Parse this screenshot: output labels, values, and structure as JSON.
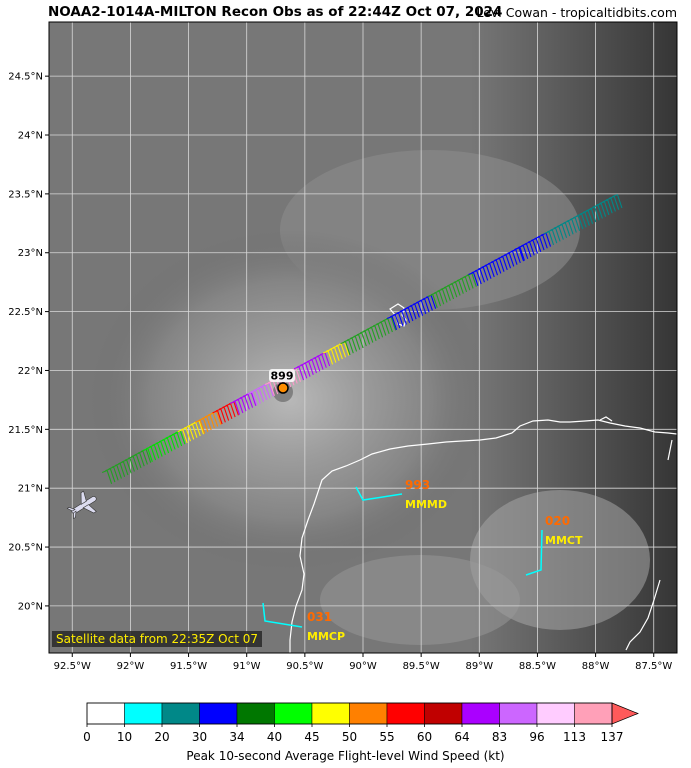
{
  "header": {
    "title": "NOAA2-1014A-MILTON Recon Obs as of 22:44Z Oct 07, 2024",
    "credit": "Levi Cowan - tropicaltidbits.com"
  },
  "map": {
    "lon_range": [
      -92.7,
      -87.3
    ],
    "lat_range": [
      19.6,
      24.96
    ],
    "lon_ticks": [
      {
        "value": -92.5,
        "label": "92.5°W"
      },
      {
        "value": -92,
        "label": "92°W"
      },
      {
        "value": -91.5,
        "label": "91.5°W"
      },
      {
        "value": -91,
        "label": "91°W"
      },
      {
        "value": -90.5,
        "label": "90.5°W"
      },
      {
        "value": -90,
        "label": "90°W"
      },
      {
        "value": -89.5,
        "label": "89.5°W"
      },
      {
        "value": -89,
        "label": "89°W"
      },
      {
        "value": -88.5,
        "label": "88.5°W"
      },
      {
        "value": -88,
        "label": "88°W"
      },
      {
        "value": -87.5,
        "label": "87.5°W"
      }
    ],
    "lat_ticks": [
      {
        "value": 20,
        "label": "20°N"
      },
      {
        "value": 20.5,
        "label": "20.5°N"
      },
      {
        "value": 21,
        "label": "21°N"
      },
      {
        "value": 21.5,
        "label": "21.5°N"
      },
      {
        "value": 22,
        "label": "22°N"
      },
      {
        "value": 22.5,
        "label": "22.5°N"
      },
      {
        "value": 23,
        "label": "23°N"
      },
      {
        "value": 23.5,
        "label": "23.5°N"
      },
      {
        "value": 24,
        "label": "24°N"
      },
      {
        "value": 24.5,
        "label": "24.5°N"
      }
    ],
    "grid": true,
    "satellite_label": "Satellite data from 22:35Z Oct 07",
    "center_fix": {
      "lon": -90.66,
      "lat": 21.86,
      "pressure_label": "899"
    },
    "flight_track": {
      "start": {
        "lon": -92.2,
        "lat": 21.15
      },
      "end": {
        "lon": -87.8,
        "lat": 23.5
      },
      "segments": [
        {
          "from": -92.2,
          "to": -91.85,
          "color": "#22a022"
        },
        {
          "from": -91.85,
          "to": -91.55,
          "color": "#00e000"
        },
        {
          "from": -91.55,
          "to": -91.4,
          "color": "#ffee00"
        },
        {
          "from": -91.4,
          "to": -91.25,
          "color": "#ff8c00"
        },
        {
          "from": -91.25,
          "to": -91.1,
          "color": "#ff0000"
        },
        {
          "from": -91.1,
          "to": -90.95,
          "color": "#aa00ff"
        },
        {
          "from": -90.95,
          "to": -90.8,
          "color": "#cc66ff"
        },
        {
          "from": -90.8,
          "to": -90.55,
          "color": "#ff99cc"
        },
        {
          "from": -90.55,
          "to": -90.3,
          "color": "#aa00ff"
        },
        {
          "from": -90.3,
          "to": -90.15,
          "color": "#ffee00"
        },
        {
          "from": -90.15,
          "to": -89.75,
          "color": "#22a022"
        },
        {
          "from": -89.75,
          "to": -89.4,
          "color": "#0000ff"
        },
        {
          "from": -89.4,
          "to": -89.05,
          "color": "#22a022"
        },
        {
          "from": -89.05,
          "to": -88.65,
          "color": "#0000ff"
        },
        {
          "from": -88.65,
          "to": -88.4,
          "color": "#0000ff"
        },
        {
          "from": -88.4,
          "to": -87.8,
          "color": "#008888"
        }
      ]
    },
    "surface_obs": [
      {
        "id": "MMMD",
        "value": "993",
        "lon": -90.0,
        "lat": 21.0
      },
      {
        "id": "MMCT",
        "value": "020",
        "lon": -88.45,
        "lat": 20.6
      },
      {
        "id": "MMCP",
        "value": "031",
        "lon": -90.85,
        "lat": 19.98
      }
    ]
  },
  "colorbar": {
    "title": "Peak 10-second Average Flight-level Wind Speed (kt)",
    "ticks": [
      "0",
      "10",
      "20",
      "30",
      "34",
      "40",
      "45",
      "50",
      "55",
      "60",
      "64",
      "83",
      "96",
      "113",
      "137"
    ],
    "colors": [
      "#ffffff",
      "#00ffff",
      "#008888",
      "#0000ff",
      "#007700",
      "#00ff00",
      "#ffff00",
      "#ff8000",
      "#ff0000",
      "#c00000",
      "#aa00ff",
      "#cc66ff",
      "#ffccff",
      "#ffa0b8"
    ],
    "extend_color": "#ff5a5a"
  }
}
